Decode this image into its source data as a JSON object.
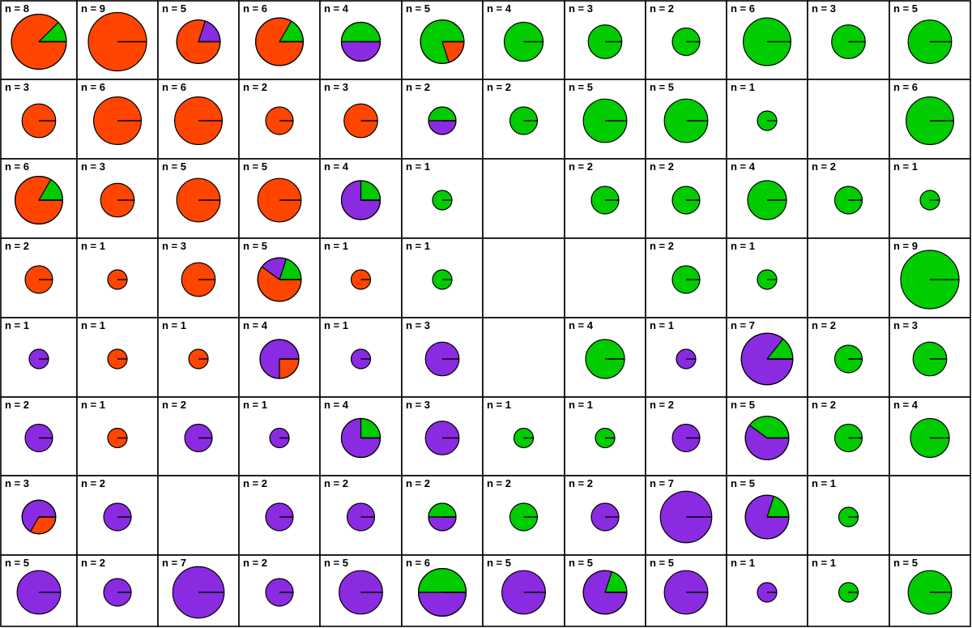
{
  "chart_data": {
    "type": "pie",
    "layout": "grid",
    "rows": 8,
    "cols": 12,
    "label_prefix": "n = ",
    "colors": {
      "orange": "#ff4500",
      "purple": "#8a2be2",
      "green": "#00cc00"
    },
    "cells": [
      [
        {
          "n": 8,
          "slices": {
            "orange": 7,
            "green": 1
          }
        },
        {
          "n": 9,
          "slices": {
            "orange": 9
          }
        },
        {
          "n": 5,
          "slices": {
            "orange": 4,
            "purple": 1
          }
        },
        {
          "n": 6,
          "slices": {
            "orange": 5,
            "green": 1
          }
        },
        {
          "n": 4,
          "slices": {
            "purple": 2,
            "green": 2
          }
        },
        {
          "n": 5,
          "slices": {
            "orange": 1,
            "green": 4
          }
        },
        {
          "n": 4,
          "slices": {
            "green": 4
          }
        },
        {
          "n": 3,
          "slices": {
            "green": 3
          }
        },
        {
          "n": 2,
          "slices": {
            "green": 2
          }
        },
        {
          "n": 6,
          "slices": {
            "green": 6
          }
        },
        {
          "n": 3,
          "slices": {
            "green": 3
          }
        },
        {
          "n": 5,
          "slices": {
            "green": 5
          }
        }
      ],
      [
        {
          "n": 3,
          "slices": {
            "orange": 3
          }
        },
        {
          "n": 6,
          "slices": {
            "orange": 6
          }
        },
        {
          "n": 6,
          "slices": {
            "orange": 6
          }
        },
        {
          "n": 2,
          "slices": {
            "orange": 2
          }
        },
        {
          "n": 3,
          "slices": {
            "orange": 3
          }
        },
        {
          "n": 2,
          "slices": {
            "purple": 1,
            "green": 1
          }
        },
        {
          "n": 2,
          "slices": {
            "green": 2
          }
        },
        {
          "n": 5,
          "slices": {
            "green": 5
          }
        },
        {
          "n": 5,
          "slices": {
            "green": 5
          }
        },
        {
          "n": 1,
          "slices": {
            "green": 1
          }
        },
        null,
        {
          "n": 6,
          "slices": {
            "green": 6
          }
        }
      ],
      [
        {
          "n": 6,
          "slices": {
            "orange": 5,
            "green": 1
          }
        },
        {
          "n": 3,
          "slices": {
            "orange": 3
          }
        },
        {
          "n": 5,
          "slices": {
            "orange": 5
          }
        },
        {
          "n": 5,
          "slices": {
            "orange": 5
          }
        },
        {
          "n": 4,
          "slices": {
            "purple": 3,
            "green": 1
          }
        },
        {
          "n": 1,
          "slices": {
            "green": 1
          }
        },
        null,
        {
          "n": 2,
          "slices": {
            "green": 2
          }
        },
        {
          "n": 2,
          "slices": {
            "green": 2
          }
        },
        {
          "n": 4,
          "slices": {
            "green": 4
          }
        },
        {
          "n": 2,
          "slices": {
            "green": 2
          }
        },
        {
          "n": 1,
          "slices": {
            "green": 1
          }
        }
      ],
      [
        {
          "n": 2,
          "slices": {
            "orange": 2
          }
        },
        {
          "n": 1,
          "slices": {
            "orange": 1
          }
        },
        {
          "n": 3,
          "slices": {
            "orange": 3
          }
        },
        {
          "n": 5,
          "slices": {
            "orange": 3,
            "purple": 1,
            "green": 1
          }
        },
        {
          "n": 1,
          "slices": {
            "orange": 1
          }
        },
        {
          "n": 1,
          "slices": {
            "green": 1
          }
        },
        null,
        null,
        {
          "n": 2,
          "slices": {
            "green": 2
          }
        },
        {
          "n": 1,
          "slices": {
            "green": 1
          }
        },
        null,
        {
          "n": 9,
          "slices": {
            "green": 9
          }
        }
      ],
      [
        {
          "n": 1,
          "slices": {
            "purple": 1
          }
        },
        {
          "n": 1,
          "slices": {
            "orange": 1
          }
        },
        {
          "n": 1,
          "slices": {
            "orange": 1
          }
        },
        {
          "n": 4,
          "slices": {
            "orange": 1,
            "purple": 3
          }
        },
        {
          "n": 1,
          "slices": {
            "purple": 1
          }
        },
        {
          "n": 3,
          "slices": {
            "purple": 3
          }
        },
        null,
        {
          "n": 4,
          "slices": {
            "green": 4
          }
        },
        {
          "n": 1,
          "slices": {
            "purple": 1
          }
        },
        {
          "n": 7,
          "slices": {
            "purple": 6,
            "green": 1
          }
        },
        {
          "n": 2,
          "slices": {
            "green": 2
          }
        },
        {
          "n": 3,
          "slices": {
            "green": 3
          }
        }
      ],
      [
        {
          "n": 2,
          "slices": {
            "purple": 2
          }
        },
        {
          "n": 1,
          "slices": {
            "orange": 1
          }
        },
        {
          "n": 2,
          "slices": {
            "purple": 2
          }
        },
        {
          "n": 1,
          "slices": {
            "purple": 1
          }
        },
        {
          "n": 4,
          "slices": {
            "purple": 3,
            "green": 1
          }
        },
        {
          "n": 3,
          "slices": {
            "purple": 3
          }
        },
        {
          "n": 1,
          "slices": {
            "green": 1
          }
        },
        {
          "n": 1,
          "slices": {
            "green": 1
          }
        },
        {
          "n": 2,
          "slices": {
            "purple": 2
          }
        },
        {
          "n": 5,
          "slices": {
            "purple": 3,
            "green": 2
          }
        },
        {
          "n": 2,
          "slices": {
            "green": 2
          }
        },
        {
          "n": 4,
          "slices": {
            "green": 4
          }
        }
      ],
      [
        {
          "n": 3,
          "slices": {
            "orange": 1,
            "purple": 2
          }
        },
        {
          "n": 2,
          "slices": {
            "purple": 2
          }
        },
        null,
        {
          "n": 2,
          "slices": {
            "purple": 2
          }
        },
        {
          "n": 2,
          "slices": {
            "purple": 2
          }
        },
        {
          "n": 2,
          "slices": {
            "purple": 1,
            "green": 1
          }
        },
        {
          "n": 2,
          "slices": {
            "green": 2
          }
        },
        {
          "n": 2,
          "slices": {
            "purple": 2
          }
        },
        {
          "n": 7,
          "slices": {
            "purple": 7
          }
        },
        {
          "n": 5,
          "slices": {
            "purple": 4,
            "green": 1
          }
        },
        {
          "n": 1,
          "slices": {
            "green": 1
          }
        },
        null
      ],
      [
        {
          "n": 5,
          "slices": {
            "purple": 5
          }
        },
        {
          "n": 2,
          "slices": {
            "purple": 2
          }
        },
        {
          "n": 7,
          "slices": {
            "purple": 7
          }
        },
        {
          "n": 2,
          "slices": {
            "purple": 2
          }
        },
        {
          "n": 5,
          "slices": {
            "purple": 5
          }
        },
        {
          "n": 6,
          "slices": {
            "purple": 3,
            "green": 3
          }
        },
        {
          "n": 5,
          "slices": {
            "purple": 5
          }
        },
        {
          "n": 5,
          "slices": {
            "purple": 4,
            "green": 1
          }
        },
        {
          "n": 5,
          "slices": {
            "purple": 5
          }
        },
        {
          "n": 1,
          "slices": {
            "purple": 1
          }
        },
        {
          "n": 1,
          "slices": {
            "green": 1
          }
        },
        {
          "n": 5,
          "slices": {
            "green": 5
          }
        }
      ]
    ]
  }
}
